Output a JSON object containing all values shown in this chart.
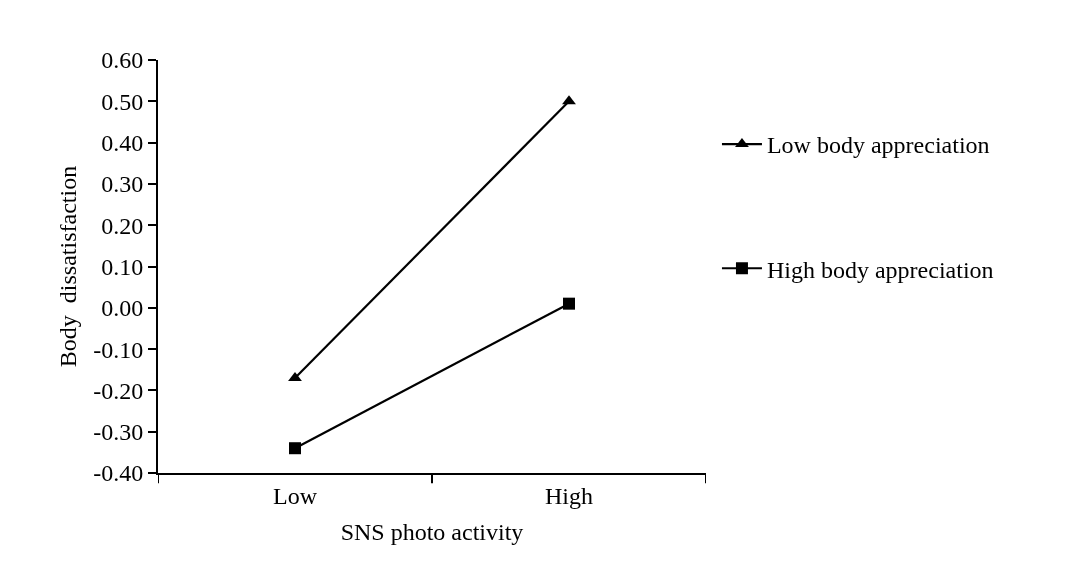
{
  "chart_data": {
    "type": "line",
    "xlabel": "SNS photo activity",
    "ylabel": "Body  dissatisfaction",
    "categories": [
      "Low",
      "High"
    ],
    "series": [
      {
        "name": "Low body appreciation",
        "color": "#000000",
        "values": [
          -0.17,
          0.5
        ],
        "marker": "triangle"
      },
      {
        "name": "High body appreciation",
        "color": "#000000",
        "values": [
          -0.34,
          0.01
        ],
        "marker": "square"
      }
    ],
    "ylim": [
      -0.4,
      0.6
    ],
    "yticks": [
      {
        "value": -0.4,
        "label": "-0.40"
      },
      {
        "value": -0.3,
        "label": "-0.30"
      },
      {
        "value": -0.2,
        "label": "-0.20"
      },
      {
        "value": -0.1,
        "label": "-0.10"
      },
      {
        "value": 0,
        "label": "0.00"
      },
      {
        "value": 0.1,
        "label": "0.10"
      },
      {
        "value": 0.2,
        "label": "0.20"
      },
      {
        "value": 0.3,
        "label": "0.30"
      },
      {
        "value": 0.4,
        "label": "0.40"
      },
      {
        "value": 0.5,
        "label": "0.50"
      },
      {
        "value": 0.6,
        "label": "0.60"
      }
    ],
    "grid": false,
    "legend": "right",
    "line_style": "solid"
  }
}
